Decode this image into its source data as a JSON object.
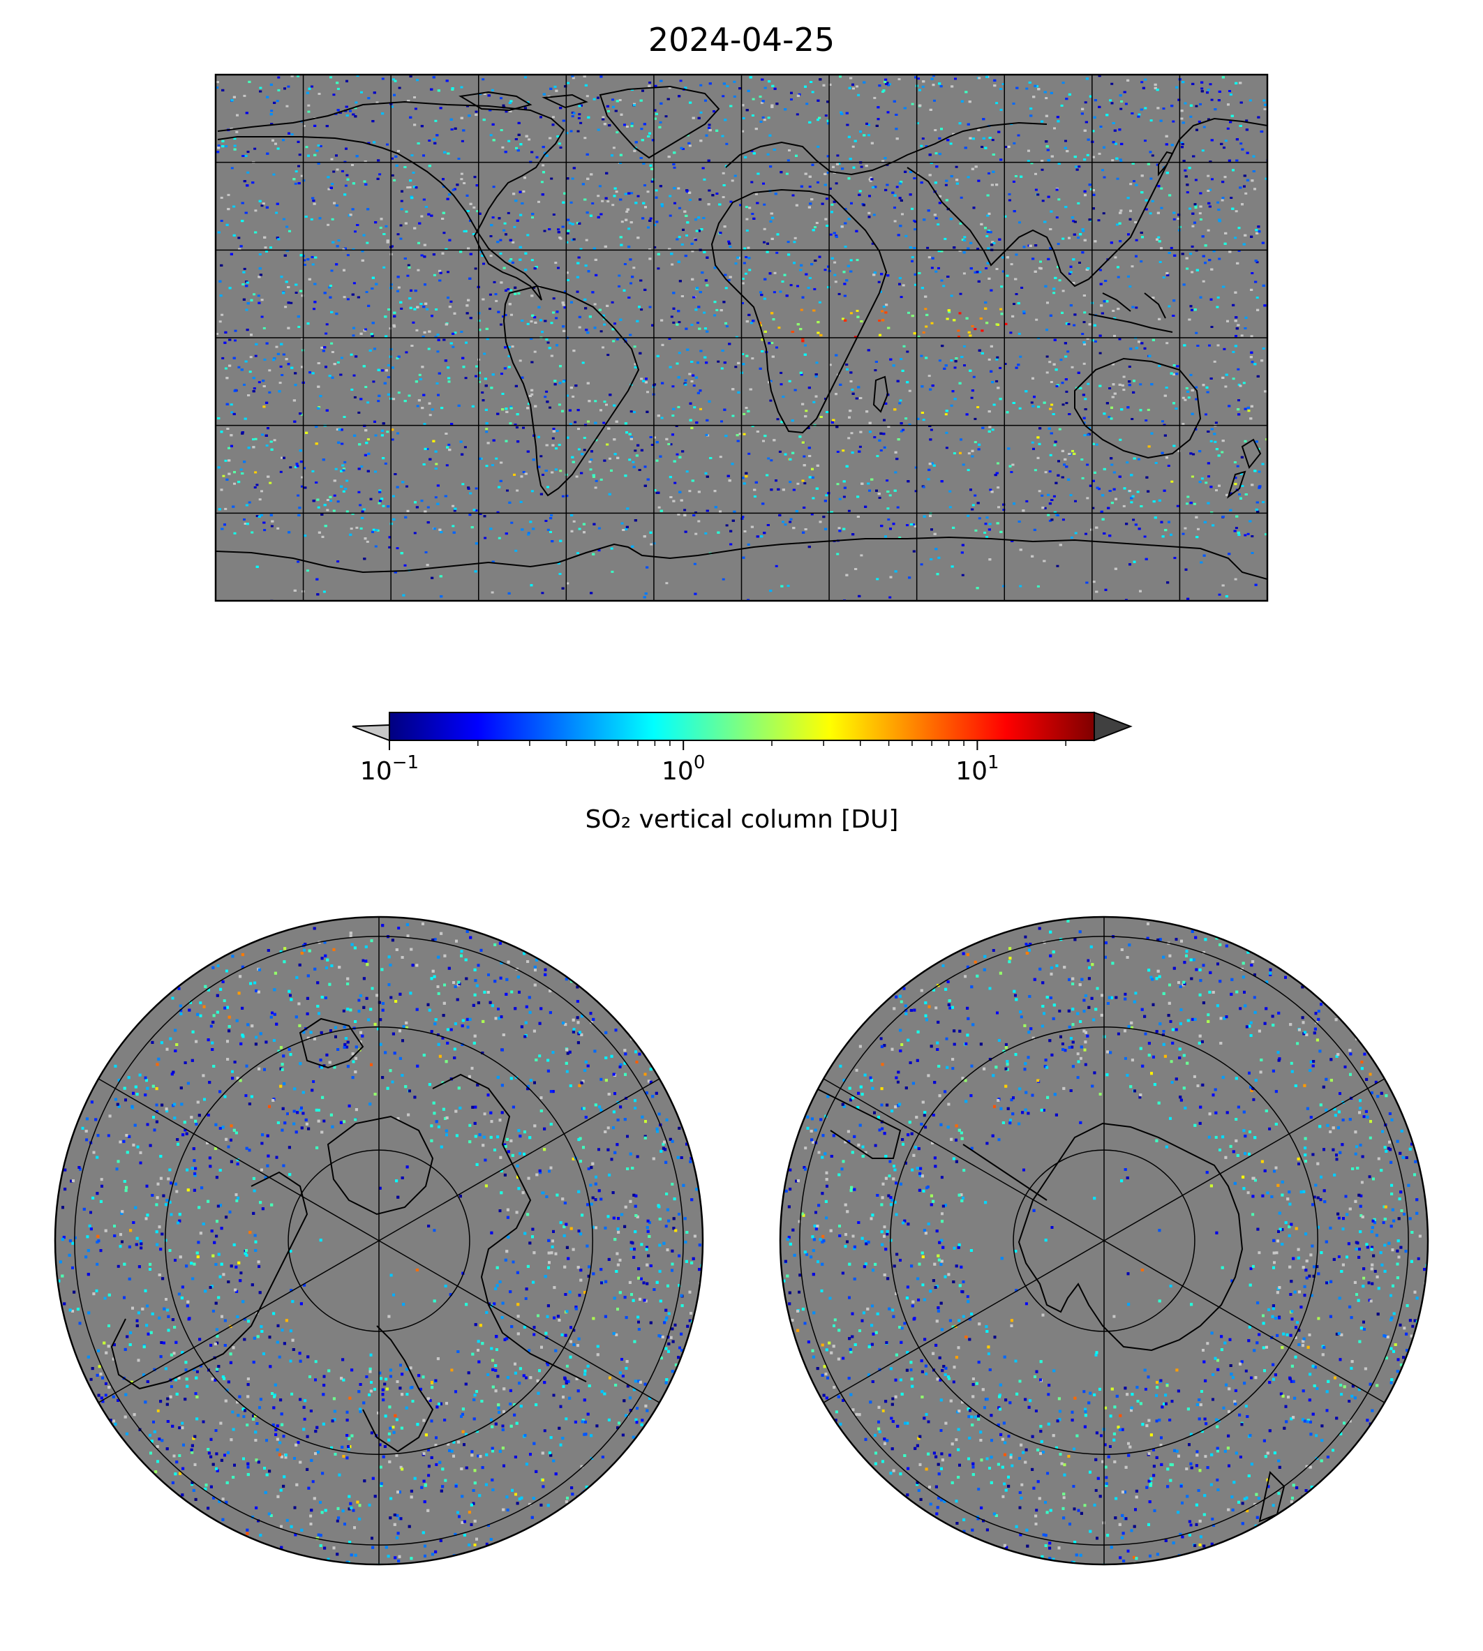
{
  "figure": {
    "title": "2024-04-25",
    "background_color": "#ffffff",
    "map_background_color": "#808080",
    "coastline_color": "#000000",
    "gridline_color": "#000000"
  },
  "panels": [
    {
      "id": "global-map",
      "projection": "equirectangular",
      "extent_lon": [
        -180,
        180
      ],
      "extent_lat": [
        -90,
        90
      ],
      "gridline_lon_step_deg": 30,
      "gridline_lat_step_deg": 30
    },
    {
      "id": "north-polar-map",
      "projection": "polar-stereographic",
      "hemisphere": "north",
      "meridian_step_deg": 60,
      "parallel_rings": 3
    },
    {
      "id": "south-polar-map",
      "projection": "polar-stereographic",
      "hemisphere": "south",
      "meridian_step_deg": 60,
      "parallel_rings": 3
    }
  ],
  "colorbar": {
    "label": "SO₂ vertical column [DU]",
    "colormap": "jet",
    "scale": "log",
    "range": [
      0.1,
      25
    ],
    "extend": "both",
    "under_color": "#c8c8c8",
    "over_color": "#404040",
    "ticks": [
      {
        "value": 0.1,
        "base": "10",
        "exponent": "−1"
      },
      {
        "value": 1,
        "base": "10",
        "exponent": "0"
      },
      {
        "value": 10,
        "base": "10",
        "exponent": "1"
      }
    ]
  }
}
